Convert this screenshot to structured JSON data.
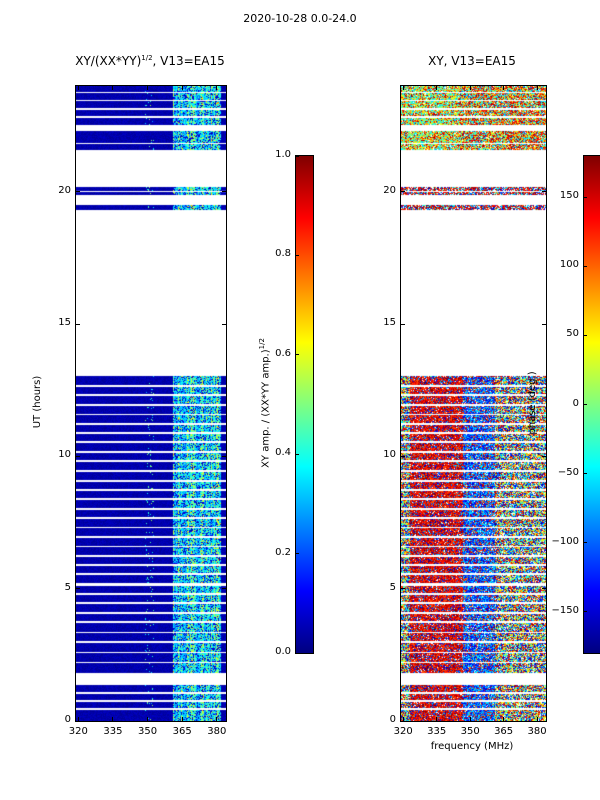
{
  "figure": {
    "title": "2020-10-28 0.0-24.0",
    "xlabel": "frequency (MHz)",
    "ylabel": "UT (hours)"
  },
  "chart_data": [
    {
      "type": "heatmap",
      "title_parts": {
        "pre": "XY/(XX*YY)",
        "sup": "1/2",
        "post": ", V13=EA15"
      },
      "xlabel": "",
      "ylabel": "UT (hours)",
      "xlim": [
        319,
        384
      ],
      "ylim": [
        0,
        24
      ],
      "xticks": [
        320,
        335,
        350,
        365,
        380
      ],
      "yticks": [
        0,
        5,
        10,
        15,
        20
      ],
      "colormap": "jet",
      "colorbar": {
        "label_parts": {
          "pre": "XY amp. / (XX*YY amp.)",
          "sup": "1/2"
        },
        "clim": [
          0.0,
          1.0
        ],
        "ticks": [
          0.0,
          0.2,
          0.4,
          0.6,
          0.8,
          1.0
        ],
        "tick_decimals": 1
      },
      "background_amp": 0.05,
      "signal_band_mhz": [
        361,
        382
      ],
      "band_amp_range": [
        0.25,
        0.6
      ],
      "sparse_feature_mhz": [
        349,
        353
      ],
      "time_segments": [
        [
          0.0,
          0.4
        ],
        [
          0.5,
          0.72
        ],
        [
          0.79,
          1.03
        ],
        [
          1.09,
          1.36
        ],
        [
          1.8,
          2.18
        ],
        [
          2.24,
          2.56
        ],
        [
          2.62,
          2.95
        ],
        [
          3.02,
          3.31
        ],
        [
          3.38,
          3.7
        ],
        [
          3.77,
          4.05
        ],
        [
          4.12,
          4.41
        ],
        [
          4.48,
          4.78
        ],
        [
          4.85,
          5.12
        ],
        [
          5.2,
          5.5
        ],
        [
          5.58,
          5.85
        ],
        [
          5.93,
          6.2
        ],
        [
          6.28,
          6.56
        ],
        [
          6.62,
          6.91
        ],
        [
          6.98,
          7.28
        ],
        [
          7.35,
          7.63
        ],
        [
          7.7,
          7.98
        ],
        [
          8.05,
          8.35
        ],
        [
          8.42,
          8.7
        ],
        [
          8.78,
          9.05
        ],
        [
          9.12,
          9.42
        ],
        [
          9.5,
          9.78
        ],
        [
          9.85,
          10.12
        ],
        [
          10.2,
          10.5
        ],
        [
          10.58,
          10.85
        ],
        [
          10.92,
          11.2
        ],
        [
          11.28,
          11.56
        ],
        [
          11.62,
          11.92
        ],
        [
          12.0,
          12.28
        ],
        [
          12.35,
          12.62
        ],
        [
          12.7,
          13.05
        ],
        [
          19.32,
          19.5
        ],
        [
          19.88,
          20.0
        ],
        [
          20.04,
          20.18
        ],
        [
          21.58,
          21.81
        ],
        [
          21.85,
          22.06
        ],
        [
          22.09,
          22.3
        ],
        [
          22.52,
          22.8
        ],
        [
          22.86,
          23.1
        ],
        [
          23.16,
          23.42
        ],
        [
          23.48,
          23.72
        ],
        [
          23.78,
          24.0
        ]
      ]
    },
    {
      "type": "heatmap",
      "title_parts": {
        "pre": "XY, V13=EA15",
        "sup": "",
        "post": ""
      },
      "xlabel": "frequency (MHz)",
      "ylabel": "UT (hours)",
      "xlim": [
        319,
        384
      ],
      "ylim": [
        0,
        24
      ],
      "xticks": [
        320,
        335,
        350,
        365,
        380
      ],
      "yticks": [
        0,
        5,
        10,
        15,
        20
      ],
      "colormap": "jet",
      "colorbar": {
        "label": "phase (deg.)",
        "clim": [
          -180,
          180
        ],
        "ticks": [
          -150,
          -100,
          -50,
          0,
          50,
          100,
          150
        ],
        "tick_decimals": 0
      },
      "freq_regions": [
        {
          "mhz": [
            319,
            323
          ],
          "character": "mixed phase noise"
        },
        {
          "mhz": [
            323,
            347
          ],
          "character": "phase near +150..180 deg (red) with blue speckles"
        },
        {
          "mhz": [
            347,
            361
          ],
          "character": "phase near -120..-180 deg (blue) with red speckles"
        },
        {
          "mhz": [
            361,
            384
          ],
          "character": "chaotic mixed phase with dropouts"
        }
      ],
      "time_segments": [
        [
          0.0,
          0.4
        ],
        [
          0.5,
          0.72
        ],
        [
          0.79,
          1.03
        ],
        [
          1.09,
          1.36
        ],
        [
          1.8,
          2.18
        ],
        [
          2.24,
          2.56
        ],
        [
          2.62,
          2.95
        ],
        [
          3.02,
          3.31
        ],
        [
          3.38,
          3.7
        ],
        [
          3.77,
          4.05
        ],
        [
          4.12,
          4.41
        ],
        [
          4.48,
          4.78
        ],
        [
          4.85,
          5.12
        ],
        [
          5.2,
          5.5
        ],
        [
          5.58,
          5.85
        ],
        [
          5.93,
          6.2
        ],
        [
          6.28,
          6.56
        ],
        [
          6.62,
          6.91
        ],
        [
          6.98,
          7.28
        ],
        [
          7.35,
          7.63
        ],
        [
          7.7,
          7.98
        ],
        [
          8.05,
          8.35
        ],
        [
          8.42,
          8.7
        ],
        [
          8.78,
          9.05
        ],
        [
          9.12,
          9.42
        ],
        [
          9.5,
          9.78
        ],
        [
          9.85,
          10.12
        ],
        [
          10.2,
          10.5
        ],
        [
          10.58,
          10.85
        ],
        [
          10.92,
          11.2
        ],
        [
          11.28,
          11.56
        ],
        [
          11.62,
          11.92
        ],
        [
          12.0,
          12.28
        ],
        [
          12.35,
          12.62
        ],
        [
          12.7,
          13.05
        ],
        [
          19.32,
          19.5
        ],
        [
          19.88,
          20.0
        ],
        [
          20.04,
          20.18
        ],
        [
          21.58,
          21.81
        ],
        [
          21.85,
          22.06
        ],
        [
          22.09,
          22.3
        ],
        [
          22.52,
          22.8
        ],
        [
          22.86,
          23.1
        ],
        [
          23.16,
          23.42
        ],
        [
          23.48,
          23.72
        ],
        [
          23.78,
          24.0
        ]
      ]
    }
  ]
}
